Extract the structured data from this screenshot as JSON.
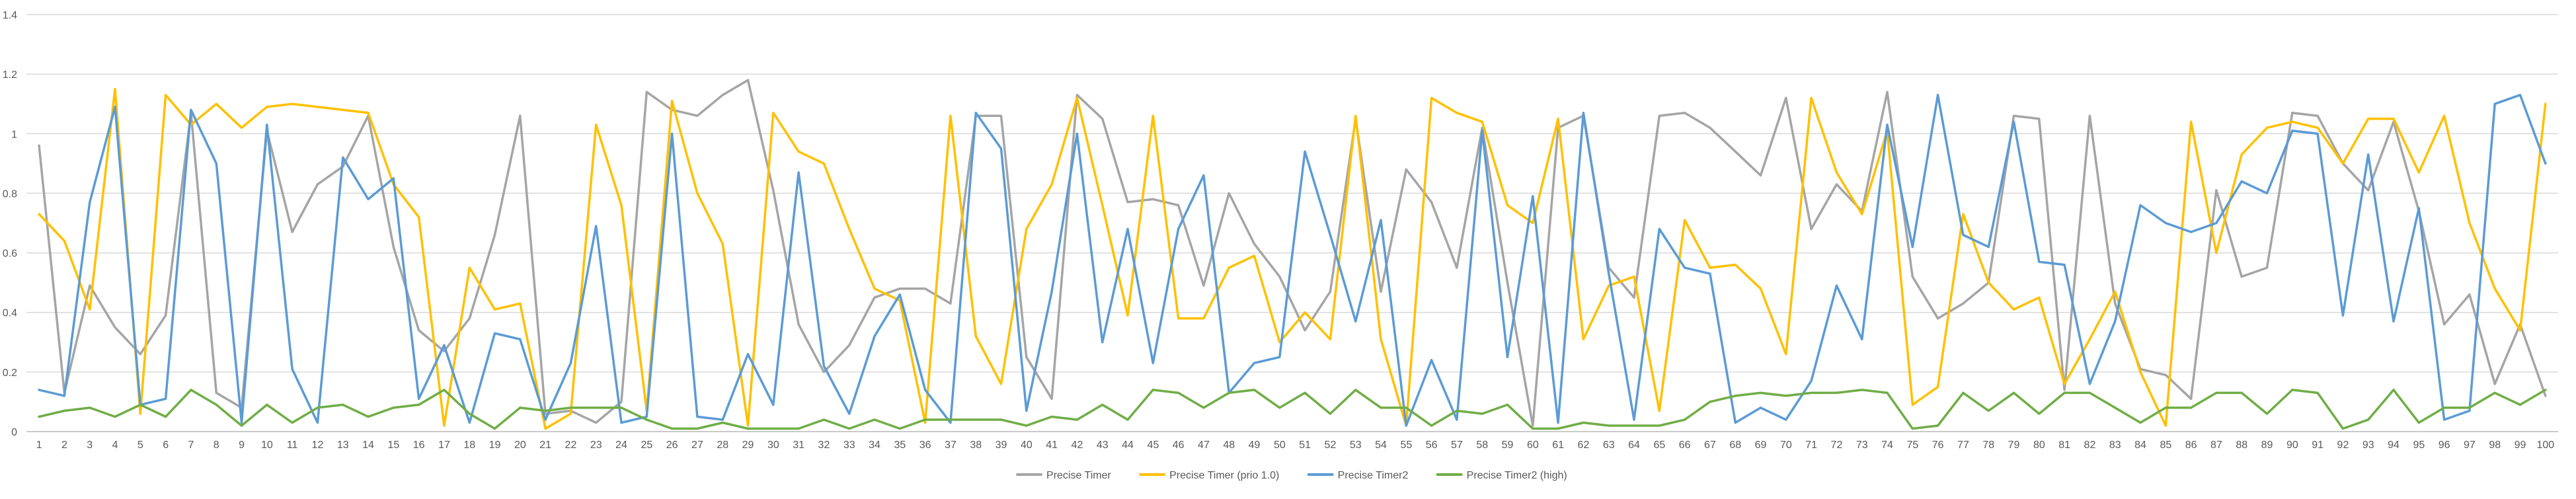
{
  "chart_data": {
    "type": "line",
    "title": "",
    "xlabel": "",
    "ylabel": "",
    "ylim": [
      0,
      1.4
    ],
    "yticks": [
      "0",
      "0.2",
      "0.4",
      "0.6",
      "0.8",
      "1",
      "1.2",
      "1.4"
    ],
    "categories": [
      "1",
      "2",
      "3",
      "4",
      "5",
      "6",
      "7",
      "8",
      "9",
      "10",
      "11",
      "12",
      "13",
      "14",
      "15",
      "16",
      "17",
      "18",
      "19",
      "20",
      "21",
      "22",
      "23",
      "24",
      "25",
      "26",
      "27",
      "28",
      "29",
      "30",
      "31",
      "32",
      "33",
      "34",
      "35",
      "36",
      "37",
      "38",
      "39",
      "40",
      "41",
      "42",
      "43",
      "44",
      "45",
      "46",
      "47",
      "48",
      "49",
      "50",
      "51",
      "52",
      "53",
      "54",
      "55",
      "56",
      "57",
      "58",
      "59",
      "60",
      "61",
      "62",
      "63",
      "64",
      "65",
      "66",
      "67",
      "68",
      "69",
      "70",
      "71",
      "72",
      "73",
      "74",
      "75",
      "76",
      "77",
      "78",
      "79",
      "80",
      "81",
      "82",
      "83",
      "84",
      "85",
      "86",
      "87",
      "88",
      "89",
      "90",
      "91",
      "92",
      "93",
      "94",
      "95",
      "96",
      "97",
      "98",
      "99",
      "100"
    ],
    "grid": "horizontal",
    "legend_position": "bottom",
    "series": [
      {
        "name": "Precise Timer",
        "color": "#a5a5a5",
        "values": [
          0.96,
          0.13,
          0.49,
          0.35,
          0.26,
          0.39,
          1.07,
          0.13,
          0.08,
          1.01,
          0.67,
          0.83,
          0.89,
          1.06,
          0.62,
          0.34,
          0.27,
          0.38,
          0.66,
          1.06,
          0.06,
          0.07,
          0.03,
          0.1,
          1.14,
          1.08,
          1.06,
          1.13,
          1.18,
          0.81,
          0.36,
          0.2,
          0.29,
          0.45,
          0.48,
          0.48,
          0.43,
          1.06,
          1.06,
          0.25,
          0.11,
          1.13,
          1.05,
          0.77,
          0.78,
          0.76,
          0.49,
          0.8,
          0.63,
          0.52,
          0.34,
          0.47,
          1.05,
          0.47,
          0.88,
          0.77,
          0.55,
          1.02,
          0.5,
          0.02,
          1.02,
          1.06,
          0.55,
          0.45,
          1.06,
          1.07,
          1.02,
          0.94,
          0.86,
          1.12,
          0.68,
          0.83,
          0.74,
          1.14,
          0.52,
          0.38,
          0.43,
          0.5,
          1.06,
          1.05,
          0.14,
          1.06,
          0.43,
          0.21,
          0.19,
          0.11,
          0.81,
          0.52,
          0.55,
          1.07,
          1.06,
          0.9,
          0.81,
          1.04,
          0.74,
          0.36,
          0.46,
          0.16,
          0.36,
          0.12
        ]
      },
      {
        "name": "Precise Timer (prio 1.0)",
        "color": "#ffc000",
        "values": [
          0.73,
          0.64,
          0.41,
          1.15,
          0.06,
          1.13,
          1.03,
          1.1,
          1.02,
          1.09,
          1.1,
          1.09,
          1.08,
          1.07,
          0.83,
          0.72,
          0.02,
          0.55,
          0.41,
          0.43,
          0.01,
          0.06,
          1.03,
          0.76,
          0.07,
          1.11,
          0.8,
          0.63,
          0.02,
          1.07,
          0.94,
          0.9,
          0.68,
          0.48,
          0.44,
          0.03,
          1.06,
          0.32,
          0.16,
          0.68,
          0.83,
          1.12,
          0.76,
          0.39,
          1.06,
          0.38,
          0.38,
          0.55,
          0.59,
          0.3,
          0.4,
          0.31,
          1.06,
          0.31,
          0.02,
          1.12,
          1.07,
          1.04,
          0.76,
          0.7,
          1.05,
          0.31,
          0.49,
          0.52,
          0.07,
          0.71,
          0.55,
          0.56,
          0.48,
          0.26,
          1.12,
          0.87,
          0.73,
          1.01,
          0.09,
          0.15,
          0.73,
          0.5,
          0.41,
          0.45,
          0.16,
          0.31,
          0.47,
          0.2,
          0.02,
          1.04,
          0.6,
          0.93,
          1.02,
          1.04,
          1.02,
          0.9,
          1.05,
          1.05,
          0.87,
          1.06,
          0.7,
          0.48,
          0.34,
          1.1
        ]
      },
      {
        "name": "Precise Timer2",
        "color": "#5b9bd5",
        "values": [
          0.14,
          0.12,
          0.77,
          1.09,
          0.09,
          0.11,
          1.08,
          0.9,
          0.03,
          1.03,
          0.21,
          0.03,
          0.92,
          0.78,
          0.85,
          0.11,
          0.29,
          0.03,
          0.33,
          0.31,
          0.04,
          0.23,
          0.69,
          0.03,
          0.05,
          1.0,
          0.05,
          0.04,
          0.26,
          0.09,
          0.87,
          0.22,
          0.06,
          0.32,
          0.46,
          0.14,
          0.03,
          1.07,
          0.95,
          0.07,
          0.47,
          1.0,
          0.3,
          0.68,
          0.23,
          0.68,
          0.86,
          0.13,
          0.23,
          0.25,
          0.94,
          0.66,
          0.37,
          0.71,
          0.02,
          0.24,
          0.04,
          1.01,
          0.25,
          0.79,
          0.03,
          1.07,
          0.53,
          0.04,
          0.68,
          0.55,
          0.53,
          0.03,
          0.08,
          0.04,
          0.17,
          0.49,
          0.31,
          1.03,
          0.62,
          1.13,
          0.66,
          0.62,
          1.04,
          0.57,
          0.56,
          0.16,
          0.37,
          0.76,
          0.7,
          0.67,
          0.7,
          0.84,
          0.8,
          1.01,
          1.0,
          0.39,
          0.93,
          0.37,
          0.75,
          0.04,
          0.07,
          1.1,
          1.13,
          0.9
        ]
      },
      {
        "name": "Precise Timer2 (high)",
        "color": "#70ad47",
        "values": [
          0.05,
          0.07,
          0.08,
          0.05,
          0.09,
          0.05,
          0.14,
          0.09,
          0.02,
          0.09,
          0.03,
          0.08,
          0.09,
          0.05,
          0.08,
          0.09,
          0.14,
          0.06,
          0.01,
          0.08,
          0.07,
          0.08,
          0.08,
          0.08,
          0.04,
          0.01,
          0.01,
          0.03,
          0.01,
          0.01,
          0.01,
          0.04,
          0.01,
          0.04,
          0.01,
          0.04,
          0.04,
          0.04,
          0.04,
          0.02,
          0.05,
          0.04,
          0.09,
          0.04,
          0.14,
          0.13,
          0.08,
          0.13,
          0.14,
          0.08,
          0.13,
          0.06,
          0.14,
          0.08,
          0.08,
          0.02,
          0.07,
          0.06,
          0.09,
          0.01,
          0.01,
          0.03,
          0.02,
          0.02,
          0.02,
          0.04,
          0.1,
          0.12,
          0.13,
          0.12,
          0.13,
          0.13,
          0.14,
          0.13,
          0.01,
          0.02,
          0.13,
          0.07,
          0.13,
          0.06,
          0.13,
          0.13,
          0.08,
          0.03,
          0.08,
          0.08,
          0.13,
          0.13,
          0.06,
          0.14,
          0.13,
          0.01,
          0.04,
          0.14,
          0.03,
          0.08,
          0.08,
          0.13,
          0.09,
          0.14
        ]
      }
    ]
  }
}
